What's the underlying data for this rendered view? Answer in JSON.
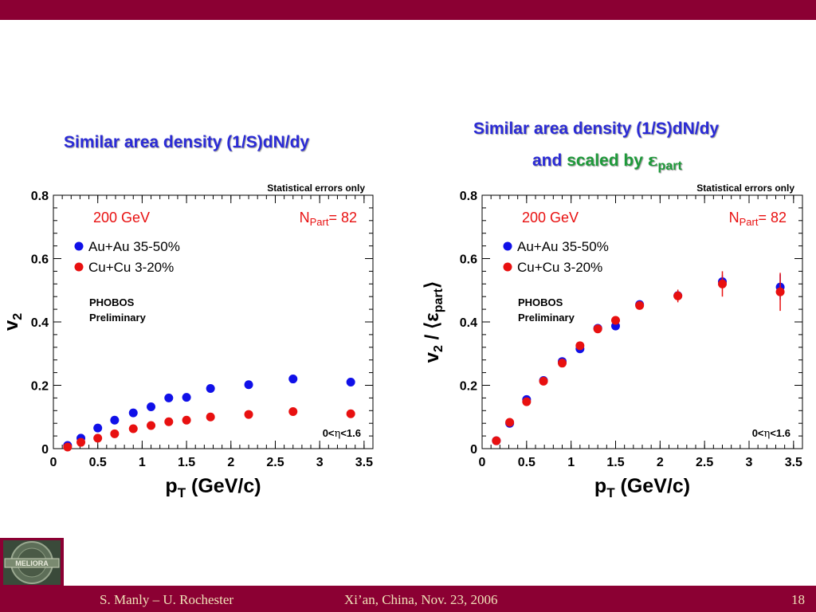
{
  "footer": {
    "author": "S. Manly – U. Rochester",
    "venue": "Xi’an, China, Nov. 23, 2006",
    "page": "18"
  },
  "logo": {
    "text": "MELIORA"
  },
  "colors": {
    "brand": "#8b0033",
    "title_blue": "#2b2bd6",
    "title_green": "#1e9a3a",
    "au": "#1010e8",
    "cu": "#e81010",
    "footer_text": "#f0e2b8"
  },
  "left_title": "Similar area density (1/S)dN/dy",
  "right_title": {
    "line1": "Similar area density (1/S)dN/dy",
    "line2_and": "and",
    "line2_scaled": "scaled by",
    "line2_eps": "ε",
    "line2_sub": "part"
  },
  "chart_data": [
    {
      "type": "scatter",
      "stat_note": "Statistical errors only",
      "energy": "200 GeV",
      "npart_N": "N",
      "npart_sub": "Part",
      "npart_val": "= 82",
      "prelim1": "PHOBOS",
      "prelim2": "Preliminary",
      "eta_pre": "0<",
      "eta_sym": "η",
      "eta_post": "<1.6",
      "ylabel_main": "v",
      "ylabel_sub": "2",
      "ylabel_extra": "",
      "ylabel_extra_sub": "",
      "xlabel_main": "p",
      "xlabel_sub": "T",
      "xlabel_rest": " (GeV/c)",
      "xlim": [
        0,
        3.6
      ],
      "ylim": [
        0,
        0.8
      ],
      "xticks": [
        "0",
        "0.5",
        "1",
        "1.5",
        "2",
        "2.5",
        "3",
        "3.5"
      ],
      "yticks": [
        "0",
        "0.2",
        "0.4",
        "0.6",
        "0.8"
      ],
      "legend_placement": "top-left",
      "series": [
        {
          "name": "Au+Au 35-50%",
          "color": "#1010e8",
          "x": [
            0.16,
            0.31,
            0.5,
            0.69,
            0.9,
            1.1,
            1.3,
            1.5,
            1.77,
            2.2,
            2.7,
            3.35
          ],
          "y": [
            0.01,
            0.033,
            0.065,
            0.09,
            0.113,
            0.132,
            0.16,
            0.162,
            0.19,
            0.202,
            0.22,
            0.21
          ],
          "err": [
            0,
            0,
            0,
            0,
            0,
            0,
            0,
            0,
            0,
            0,
            0,
            0
          ]
        },
        {
          "name": "Cu+Cu 3-20%",
          "color": "#e81010",
          "x": [
            0.16,
            0.31,
            0.5,
            0.69,
            0.9,
            1.1,
            1.3,
            1.5,
            1.77,
            2.2,
            2.7,
            3.35
          ],
          "y": [
            0.005,
            0.02,
            0.033,
            0.047,
            0.063,
            0.073,
            0.085,
            0.09,
            0.1,
            0.108,
            0.117,
            0.11
          ],
          "err": [
            0,
            0,
            0,
            0,
            0,
            0,
            0,
            0,
            0,
            0,
            0,
            0
          ]
        }
      ]
    },
    {
      "type": "scatter",
      "stat_note": "Statistical errors only",
      "energy": "200 GeV",
      "npart_N": "N",
      "npart_sub": "Part",
      "npart_val": "= 82",
      "prelim1": "PHOBOS",
      "prelim2": "Preliminary",
      "eta_pre": "0<",
      "eta_sym": "η",
      "eta_post": "<1.6",
      "ylabel_main": "v",
      "ylabel_sub": "2",
      "ylabel_extra": " / ⟨ε",
      "ylabel_extra_sub": "part",
      "ylabel_close": "⟩",
      "xlabel_main": "p",
      "xlabel_sub": "T",
      "xlabel_rest": " (GeV/c)",
      "xlim": [
        0,
        3.6
      ],
      "ylim": [
        0,
        0.8
      ],
      "xticks": [
        "0",
        "0.5",
        "1",
        "1.5",
        "2",
        "2.5",
        "3",
        "3.5"
      ],
      "yticks": [
        "0",
        "0.2",
        "0.4",
        "0.6",
        "0.8"
      ],
      "legend_placement": "top-left",
      "series": [
        {
          "name": "Au+Au 35-50%",
          "color": "#1010e8",
          "x": [
            0.16,
            0.31,
            0.5,
            0.69,
            0.9,
            1.1,
            1.3,
            1.5,
            1.77,
            2.2,
            2.7,
            3.35
          ],
          "y": [
            0.025,
            0.08,
            0.155,
            0.215,
            0.275,
            0.315,
            0.38,
            0.387,
            0.455,
            0.483,
            0.527,
            0.51
          ],
          "err": [
            0,
            0,
            0,
            0,
            0,
            0,
            0,
            0,
            0,
            0.01,
            0.02,
            0.04
          ]
        },
        {
          "name": "Cu+Cu 3-20%",
          "color": "#e81010",
          "x": [
            0.16,
            0.31,
            0.5,
            0.69,
            0.9,
            1.1,
            1.3,
            1.5,
            1.77,
            2.2,
            2.7,
            3.35
          ],
          "y": [
            0.025,
            0.083,
            0.148,
            0.213,
            0.27,
            0.325,
            0.378,
            0.405,
            0.452,
            0.482,
            0.52,
            0.495
          ],
          "err": [
            0.005,
            0.007,
            0.008,
            0.008,
            0.008,
            0.009,
            0.009,
            0.01,
            0.012,
            0.02,
            0.04,
            0.06
          ]
        }
      ]
    }
  ]
}
